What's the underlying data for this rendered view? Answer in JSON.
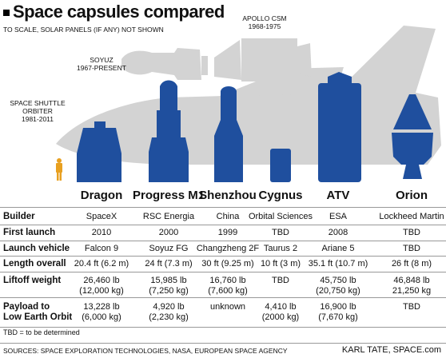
{
  "title": "Space capsules compared",
  "subtitle": "TO SCALE, SOLAR PANELS (IF ANY) NOT SHOWN",
  "background_craft": [
    {
      "name": "APOLLO CSM",
      "years": "1968-1975"
    },
    {
      "name": "SOYUZ",
      "years": "1967-PRESENT"
    },
    {
      "name": "SPACE SHUTTLE ORBITER",
      "years": "1981-2011"
    }
  ],
  "colors": {
    "capsule": "#1f4f9e",
    "silhouette": "#d3d3d3",
    "person": "#e8a020"
  },
  "capsules": [
    "Dragon",
    "Progress M1",
    "Shenzhou",
    "Cygnus",
    "ATV",
    "Orion"
  ],
  "rows": [
    {
      "label": "Builder",
      "values": [
        "SpaceX",
        "RSC Energia",
        "China",
        "Orbital Sciences",
        "ESA",
        "Lockheed Martin"
      ]
    },
    {
      "label": "First launch",
      "values": [
        "2010",
        "2000",
        "1999",
        "TBD",
        "2008",
        "TBD"
      ]
    },
    {
      "label": "Launch vehicle",
      "values": [
        "Falcon 9",
        "Soyuz FG",
        "Changzheng 2F",
        "Taurus 2",
        "Ariane 5",
        "TBD"
      ]
    },
    {
      "label": "Length overall",
      "values": [
        "20.4 ft (6.2 m)",
        "24 ft (7.3 m)",
        "30 ft (9.25 m)",
        "10 ft (3 m)",
        "35.1 ft (10.7 m)",
        "26 ft (8 m)"
      ]
    },
    {
      "label": "Liftoff weight",
      "values": [
        [
          "26,460 lb",
          "(12,000 kg)"
        ],
        [
          "15,985 lb",
          "(7,250 kg)"
        ],
        [
          "16,760 lb",
          "(7,600 kg)"
        ],
        [
          "TBD"
        ],
        [
          "45,750 lb",
          "(20,750 kg)"
        ],
        [
          "46,848 lb",
          "21,250 kg"
        ]
      ]
    },
    {
      "label": [
        "Payload to",
        "Low Earth Orbit"
      ],
      "values": [
        [
          "13,228 lb",
          "(6,000 kg)"
        ],
        [
          "4,920 lb",
          "(2,230 kg)"
        ],
        [
          "unknown"
        ],
        [
          "4,410 lb",
          "(2000 kg)"
        ],
        [
          "16,900 lb",
          "(7,670 kg)"
        ],
        [
          "TBD"
        ]
      ]
    }
  ],
  "note": "TBD = to be determined",
  "sources": "SOURCES: SPACE EXPLORATION TECHNOLOGIES, NASA, EUROPEAN SPACE AGENCY",
  "credit": "KARL TATE, SPACE.com"
}
